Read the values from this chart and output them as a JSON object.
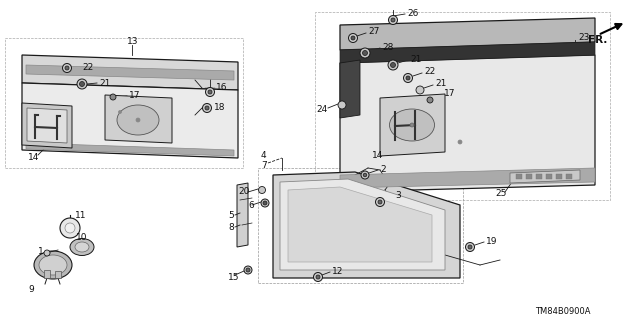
{
  "bg_color": "#ffffff",
  "line_color": "#1a1a1a",
  "diagram_code": "TM84B0900A",
  "garnish_color": "#e0e0e0",
  "garnish_dark": "#b0b0b0",
  "stripe_color": "#555555",
  "part_fill": "#cccccc",
  "dashed_color": "#888888"
}
